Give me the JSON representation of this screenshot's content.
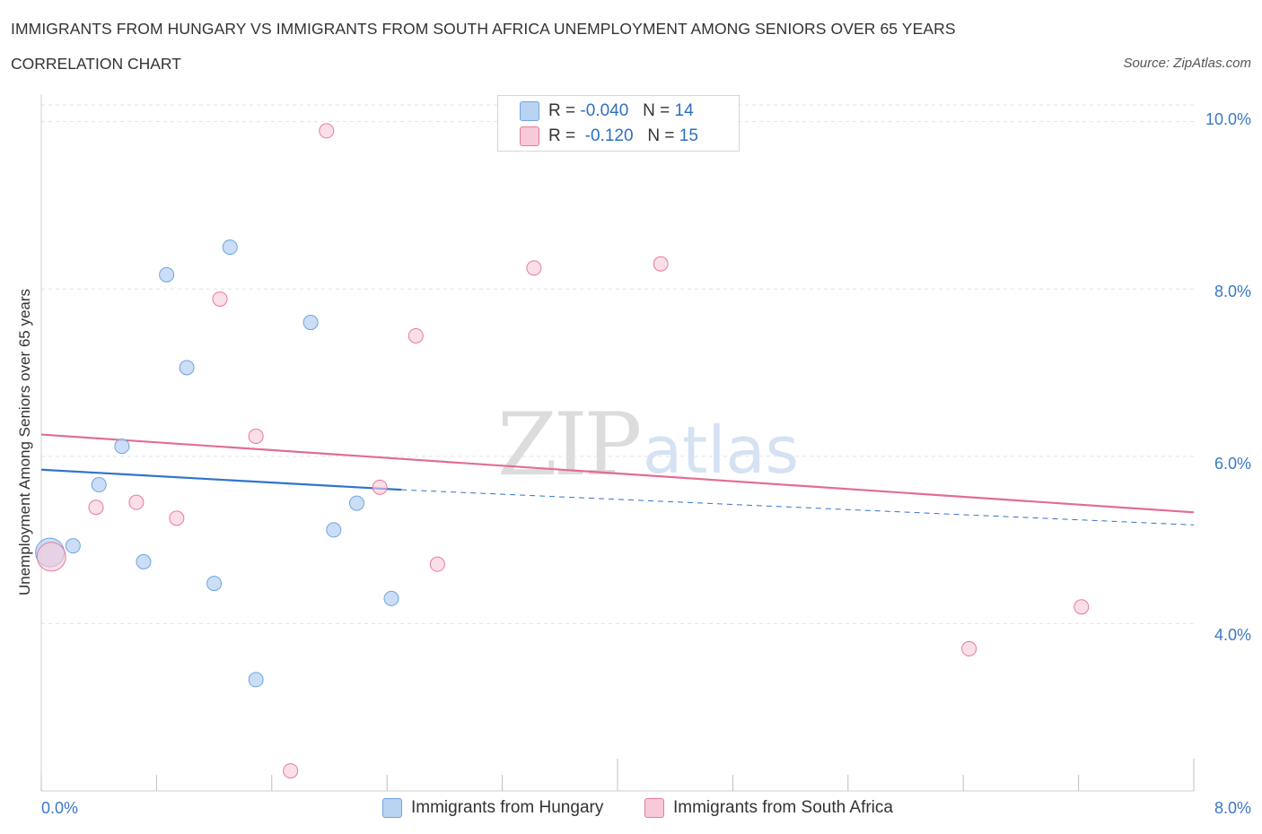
{
  "header": {
    "title": "IMMIGRANTS FROM HUNGARY VS IMMIGRANTS FROM SOUTH AFRICA UNEMPLOYMENT AMONG SENIORS OVER 65 YEARS",
    "subtitle": "CORRELATION CHART",
    "source": "Source: ZipAtlas.com"
  },
  "watermark": {
    "zip": "ZIP",
    "atlas": "atlas"
  },
  "legend": {
    "rows": [
      {
        "r_label": "R =",
        "r_value": "-0.040",
        "n_label": "N =",
        "n_value": "14"
      },
      {
        "r_label": "R =",
        "r_value": "-0.120",
        "n_label": "N =",
        "n_value": "15"
      }
    ]
  },
  "chart_data": {
    "type": "scatter",
    "title": "IMMIGRANTS FROM HUNGARY VS IMMIGRANTS FROM SOUTH AFRICA UNEMPLOYMENT AMONG SENIORS OVER 65 YEARS",
    "xlabel": "",
    "ylabel": "Unemployment Among Seniors over 65 years",
    "xlim": [
      0,
      8
    ],
    "ylim": [
      2.0,
      10.2
    ],
    "x_tick_labels": [
      "0.0%",
      "8.0%"
    ],
    "y_ticks": [
      4.0,
      6.0,
      8.0,
      10.0
    ],
    "y_tick_labels": [
      "4.0%",
      "6.0%",
      "8.0%",
      "10.0%"
    ],
    "grid": true,
    "series": [
      {
        "name": "Immigrants from Hungary",
        "color": "#6fa3e0",
        "fill": "#b9d3f3",
        "points": [
          [
            0.06,
            4.85,
            "large"
          ],
          [
            0.22,
            4.93
          ],
          [
            0.4,
            5.66
          ],
          [
            0.56,
            6.12
          ],
          [
            0.71,
            4.74
          ],
          [
            0.87,
            8.17
          ],
          [
            1.01,
            7.06
          ],
          [
            1.2,
            4.48
          ],
          [
            1.31,
            8.5
          ],
          [
            1.49,
            3.33
          ],
          [
            1.87,
            7.6
          ],
          [
            2.03,
            5.12
          ],
          [
            2.19,
            5.44
          ],
          [
            2.43,
            4.3
          ]
        ],
        "trend": {
          "x0": 0.0,
          "y0": 5.84,
          "x1": 2.5,
          "y1": 5.6,
          "x2": 8.0,
          "y2": 5.18
        }
      },
      {
        "name": "Immigrants from South Africa",
        "color": "#e8799c",
        "fill": "#f8c9d8",
        "points": [
          [
            0.07,
            4.8,
            "large"
          ],
          [
            0.38,
            5.39
          ],
          [
            0.66,
            5.45
          ],
          [
            0.94,
            5.26
          ],
          [
            1.24,
            7.88
          ],
          [
            1.49,
            6.24
          ],
          [
            1.73,
            2.24
          ],
          [
            1.98,
            9.89
          ],
          [
            2.35,
            5.63
          ],
          [
            2.6,
            7.44
          ],
          [
            2.75,
            4.71
          ],
          [
            3.42,
            8.25
          ],
          [
            4.3,
            8.3
          ],
          [
            6.44,
            3.7
          ],
          [
            7.22,
            4.2
          ]
        ],
        "trend": {
          "x0": 0.0,
          "y0": 6.26,
          "x1": 8.0,
          "y1": 5.33
        }
      }
    ]
  }
}
